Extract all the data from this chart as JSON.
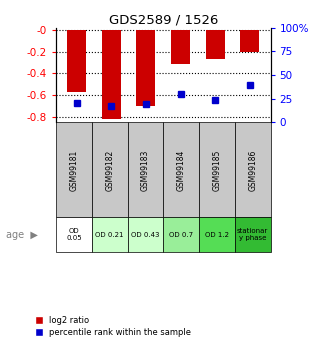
{
  "title": "GDS2589 / 1526",
  "samples": [
    "GSM99181",
    "GSM99182",
    "GSM99183",
    "GSM99184",
    "GSM99185",
    "GSM99186"
  ],
  "log2_ratio": [
    -0.57,
    -0.82,
    -0.7,
    -0.31,
    -0.27,
    -0.2
  ],
  "percentile_rank": [
    21,
    17,
    20,
    30,
    24,
    40
  ],
  "age_labels": [
    "OD\n0.05",
    "OD 0.21",
    "OD 0.43",
    "OD 0.7",
    "OD 1.2",
    "stationar\ny phase"
  ],
  "age_colors": [
    "#ffffff",
    "#ccffcc",
    "#ccffcc",
    "#99ee99",
    "#55dd55",
    "#33bb33"
  ],
  "sample_bg_color": "#c8c8c8",
  "bar_color": "#cc0000",
  "dot_color": "#0000cc",
  "ylim_left": [
    -0.85,
    0.02
  ],
  "ylim_right": [
    0,
    100
  ],
  "yticks_left": [
    0.0,
    -0.2,
    -0.4,
    -0.6,
    -0.8
  ],
  "yticks_right": [
    0,
    25,
    50,
    75,
    100
  ],
  "ytick_labels_left": [
    "-0",
    "-0.2",
    "-0.4",
    "-0.6",
    "-0.8"
  ],
  "ytick_labels_right": [
    "0",
    "25",
    "50",
    "75",
    "100%"
  ],
  "legend_red": "log2 ratio",
  "legend_blue": "percentile rank within the sample",
  "age_row_label": "age"
}
